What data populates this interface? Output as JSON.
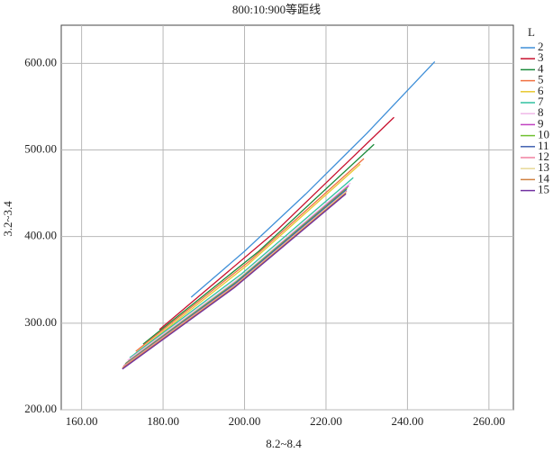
{
  "chart_data": {
    "type": "line",
    "title": "800:10:900等距线",
    "x_label": "8.2~8.4",
    "y_label": "3.2~3.4",
    "legend_title": "L",
    "legend_position": "right",
    "grid": true,
    "xlim": [
      155,
      266
    ],
    "ylim": [
      200,
      644
    ],
    "xticks": [
      {
        "value": 160,
        "label": "160.00"
      },
      {
        "value": 180,
        "label": "180.00"
      },
      {
        "value": 200,
        "label": "200.00"
      },
      {
        "value": 220,
        "label": "220.00"
      },
      {
        "value": 240,
        "label": "240.00"
      },
      {
        "value": 260,
        "label": "260.00"
      }
    ],
    "yticks": [
      {
        "value": 200,
        "label": "200.00"
      },
      {
        "value": 300,
        "label": "300.00"
      },
      {
        "value": 400,
        "label": "400.00"
      },
      {
        "value": 500,
        "label": "500.00"
      },
      {
        "value": 600,
        "label": "600.00"
      }
    ],
    "series": [
      {
        "name": "2",
        "color": "#3f8fd8",
        "x": [
          186.9,
          200,
          215,
          230,
          246.7
        ],
        "values": [
          330,
          383,
          449,
          519,
          602
        ]
      },
      {
        "name": "3",
        "color": "#c8102e",
        "x": [
          179.1,
          207.9,
          236.7
        ],
        "values": [
          292.5,
          407,
          537.7
        ]
      },
      {
        "name": "4",
        "color": "#1a8a3a",
        "x": [
          175.1,
          203.5,
          231.8
        ],
        "values": [
          275.8,
          383,
          506.5
        ]
      },
      {
        "name": "5",
        "color": "#f07040",
        "x": [
          173.3,
          201.3,
          229.3
        ],
        "values": [
          267.5,
          372,
          490
        ]
      },
      {
        "name": "6",
        "color": "#e8c830",
        "x": [
          172.9,
          200.7,
          228.4
        ],
        "values": [
          264,
          367,
          483.6
        ]
      },
      {
        "name": "7",
        "color": "#30c0a0",
        "x": [
          171.8,
          199.3,
          226.7
        ],
        "values": [
          260,
          357,
          468
        ]
      },
      {
        "name": "8",
        "color": "#f0b8e8",
        "x": [
          171.3,
          198.7,
          226
        ],
        "values": [
          257,
          352,
          461.8
        ]
      },
      {
        "name": "9",
        "color": "#c040c0",
        "x": [
          170.9,
          198.3,
          225.6
        ],
        "values": [
          254,
          349,
          458.7
        ]
      },
      {
        "name": "10",
        "color": "#70c030",
        "x": [
          170.7,
          198,
          225.3
        ],
        "values": [
          253,
          348,
          456.6
        ]
      },
      {
        "name": "11",
        "color": "#4060b0",
        "x": [
          170.4,
          197.8,
          225.1
        ],
        "values": [
          251,
          346,
          454.5
        ]
      },
      {
        "name": "12",
        "color": "#f080a0",
        "x": [
          170.2,
          197.7,
          225.1
        ],
        "values": [
          250,
          344,
          452.5
        ]
      },
      {
        "name": "13",
        "color": "#e8d898",
        "x": [
          170.2,
          197.6,
          224.9
        ],
        "values": [
          249,
          343,
          451.4
        ]
      },
      {
        "name": "14",
        "color": "#d08040",
        "x": [
          170,
          197.5,
          224.9
        ],
        "values": [
          248,
          342,
          450.4
        ]
      },
      {
        "name": "15",
        "color": "#7030a0",
        "x": [
          170,
          197.5,
          224.9
        ],
        "values": [
          247,
          341,
          449.3
        ]
      }
    ]
  }
}
